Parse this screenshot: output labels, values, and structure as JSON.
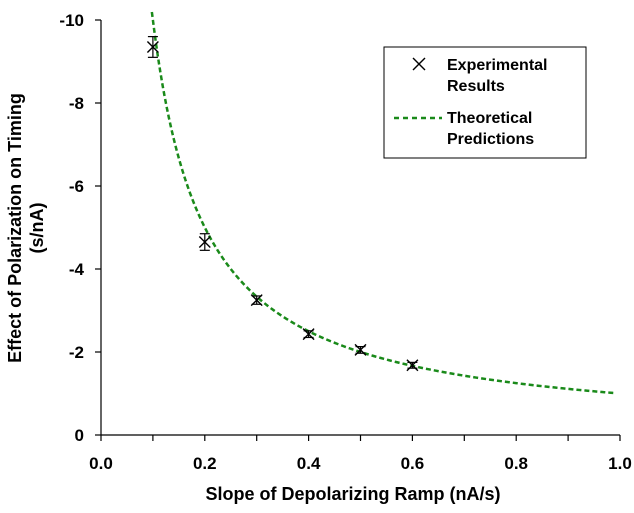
{
  "chart_data": {
    "type": "scatter",
    "xlabel": "Slope of Depolarizing Ramp (nA/s)",
    "ylabel_line1": "Effect of Polarization on Timing",
    "ylabel_line2": "(s/nA)",
    "xlim": [
      0.0,
      1.0
    ],
    "ylim": [
      0,
      -10
    ],
    "x_ticks": [
      "0.0",
      "0.2",
      "0.4",
      "0.6",
      "0.8",
      "1.0"
    ],
    "y_ticks": [
      "0",
      "-2",
      "-4",
      "-6",
      "-8",
      "-10"
    ],
    "grid": false,
    "legend_position": "top-right",
    "series": [
      {
        "name": "Experimental Results",
        "marker": "x",
        "points": [
          {
            "x": 0.1,
            "y": -9.35,
            "err": 0.25
          },
          {
            "x": 0.2,
            "y": -4.65,
            "err": 0.2
          },
          {
            "x": 0.3,
            "y": -3.25,
            "err": 0.1
          },
          {
            "x": 0.4,
            "y": -2.43,
            "err": 0.08
          },
          {
            "x": 0.5,
            "y": -2.05,
            "err": 0.08
          },
          {
            "x": 0.6,
            "y": -1.68,
            "err": 0.07
          }
        ]
      },
      {
        "name": "Theoretical Predictions",
        "style": "dashed",
        "color": "#1a8a1a",
        "function": "y = -1 / x",
        "x_range": [
          0.098,
          0.99
        ]
      }
    ],
    "legend_entries": [
      {
        "line1": "Experimental",
        "line2": "Results"
      },
      {
        "line1": "Theoretical",
        "line2": "Predictions"
      }
    ]
  }
}
